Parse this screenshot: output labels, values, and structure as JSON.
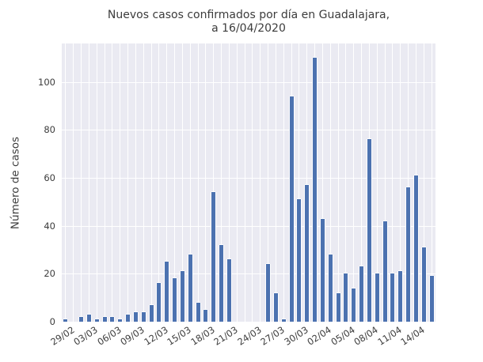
{
  "title": {
    "line1": "Nuevos casos confirmados por día en Guadalajara,",
    "line2": "a 16/04/2020"
  },
  "chart_data": {
    "type": "bar",
    "title": "Nuevos casos confirmados por día en Guadalajara, a 16/04/2020",
    "xlabel": "",
    "ylabel": "Número de casos",
    "x": [
      "29/02",
      "01/03",
      "02/03",
      "03/03",
      "04/03",
      "05/03",
      "06/03",
      "07/03",
      "08/03",
      "09/03",
      "10/03",
      "11/03",
      "12/03",
      "13/03",
      "14/03",
      "15/03",
      "16/03",
      "17/03",
      "18/03",
      "19/03",
      "20/03",
      "21/03",
      "22/03",
      "23/03",
      "24/03",
      "25/03",
      "26/03",
      "27/03",
      "28/03",
      "29/03",
      "30/03",
      "31/03",
      "01/04",
      "02/04",
      "03/04",
      "04/04",
      "05/04",
      "06/04",
      "07/04",
      "08/04",
      "09/04",
      "10/04",
      "11/04",
      "12/04",
      "13/04",
      "14/04",
      "15/04",
      "16/04"
    ],
    "values": [
      1,
      0,
      2,
      3,
      1,
      2,
      2,
      1,
      3,
      4,
      4,
      7,
      16,
      25,
      18,
      21,
      28,
      8,
      5,
      54,
      32,
      26,
      0,
      0,
      0,
      0,
      24,
      12,
      1,
      94,
      51,
      57,
      110,
      43,
      28,
      12,
      20,
      14,
      23,
      76,
      20,
      42,
      20,
      21,
      56,
      61,
      31,
      19
    ],
    "yticks": [
      0,
      20,
      40,
      60,
      80,
      100
    ],
    "xtick_step": 3,
    "xtick_labels": [
      "29/02",
      "03/03",
      "06/03",
      "09/03",
      "12/03",
      "15/03",
      "18/03",
      "21/03",
      "24/03",
      "27/03",
      "30/03",
      "02/04",
      "05/04",
      "08/04",
      "11/04",
      "14/04"
    ],
    "ylim": [
      0,
      116
    ],
    "grid": true,
    "legend": "none",
    "bar_color": "#4c72b0",
    "plot_bg_color": "#eaeaf2",
    "grid_color": "#ffffff",
    "text_color": "#3c3c3c"
  }
}
